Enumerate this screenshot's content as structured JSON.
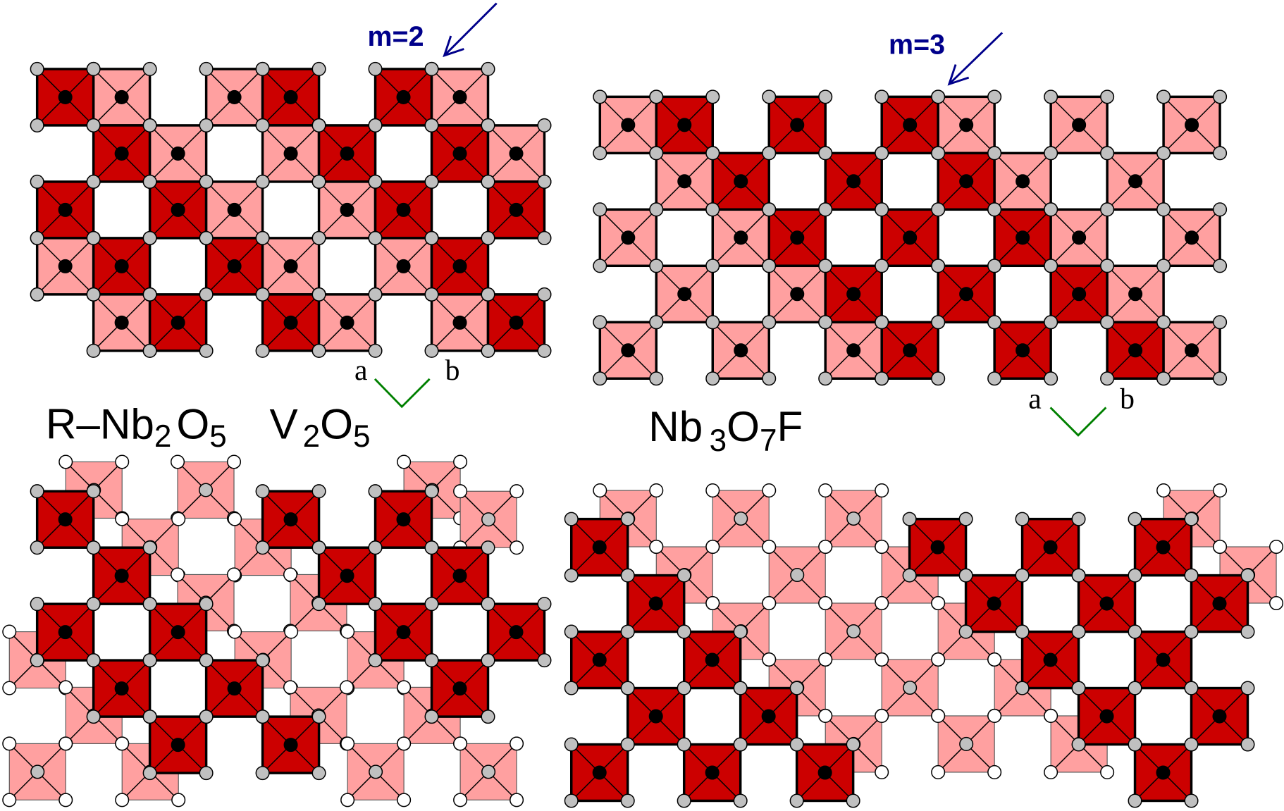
{
  "colors": {
    "dark": "#cc0000",
    "light": "#ffa0a0",
    "oxygen": "#c0c0c0",
    "axis": "#008000",
    "arrow": "#00008b"
  },
  "labels": {
    "m2": "m=2",
    "m3": "m=3",
    "axis_a": "a",
    "axis_b": "b",
    "formula_rnb2o5": {
      "p1": "R–Nb",
      "s1": "2",
      "p2": "O",
      "s2": "5"
    },
    "formula_v2o5": {
      "p1": "V",
      "s1": "2",
      "p2": "O",
      "s2": "5"
    },
    "formula_nb3o7f": {
      "p1": "Nb",
      "s1": "3",
      "p2": "O",
      "s2": "7",
      "p3": "F"
    }
  },
  "panels": [
    {
      "name": "r-nb2o5-top",
      "layered": false,
      "rows": [
        "DL.LD.DL.",
        ".DL.LD.DL",
        "D.DL.LD.D",
        "LD.DL.LD.",
        ".LD.DL.LD"
      ]
    },
    {
      "name": "nb3o7f-top",
      "layered": false,
      "rows": [
        "LD.D.DL.L.L",
        ".LD.D.DL.L.",
        "L.LD.D.DL.L",
        ".L.LD.D.DL.",
        "L.L.LD.D.DL"
      ]
    },
    {
      "name": "v2o5-bottom",
      "layered": true,
      "rows": [
        "D...D.D..",
        ".D...D.D.",
        "D.D...D.D",
        ".D.D...D.",
        "..D.D...."
      ]
    },
    {
      "name": "nb3o7f-bottom",
      "layered": true,
      "rows": [
        "D.....D.D.D",
        ".D.....D.D.D",
        "D.D.....D.D",
        ".D.D.....D.D",
        "D.D.D.....D"
      ]
    }
  ]
}
